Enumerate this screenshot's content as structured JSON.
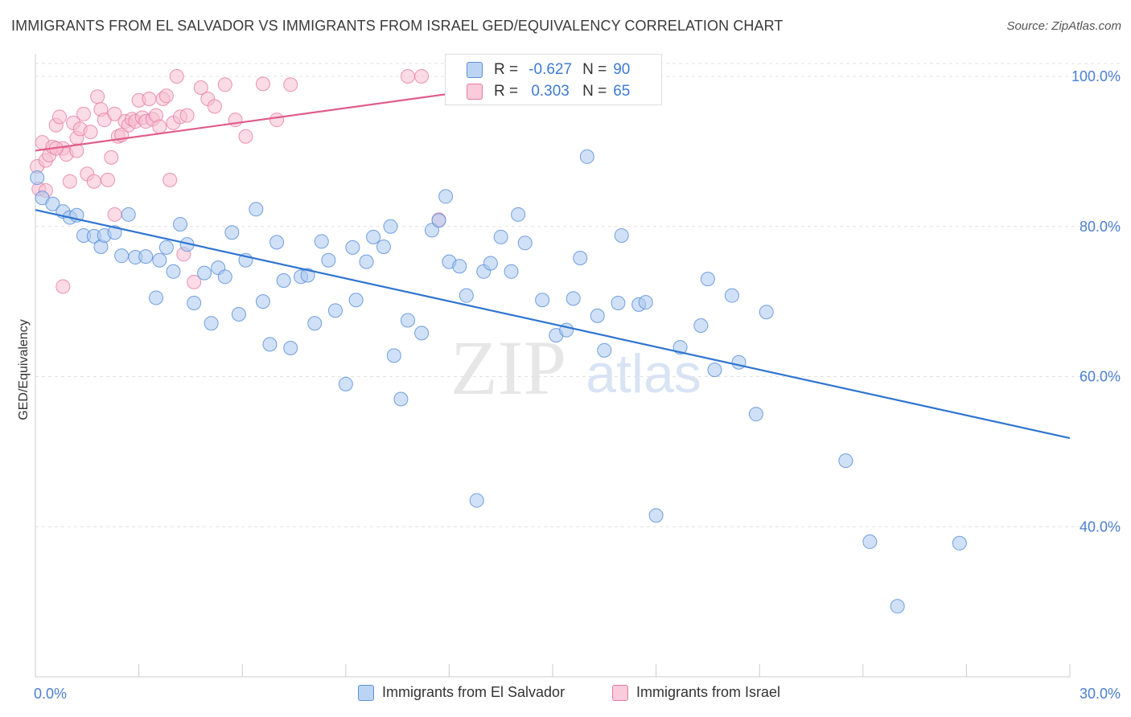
{
  "title": "IMMIGRANTS FROM EL SALVADOR VS IMMIGRANTS FROM ISRAEL GED/EQUIVALENCY CORRELATION CHART",
  "source": "Source: ZipAtlas.com",
  "watermark": {
    "zip": "ZIP",
    "atlas": "atlas"
  },
  "stats_box": {
    "r_label": "R =",
    "n_label": "N =",
    "rows": [
      {
        "r": "-0.627",
        "n": "90"
      },
      {
        "r": "0.303",
        "n": "65"
      }
    ]
  },
  "colors": {
    "blue_fill": "#aac8f0",
    "blue_stroke": "#5b8fd8",
    "blue_line": "#2f74d0",
    "pink_fill": "#f7bdd0",
    "pink_stroke": "#e67aa0",
    "pink_line": "#e05c8a",
    "tick_text": "#4a7fd0",
    "grid": "#e0e0e0"
  },
  "chart_data": {
    "type": "scatter",
    "title": "IMMIGRANTS FROM EL SALVADOR VS IMMIGRANTS FROM ISRAEL GED/EQUIVALENCY CORRELATION CHART",
    "xlabel": "",
    "ylabel": "GED/Equivalency",
    "xlim": [
      0,
      30
    ],
    "ylim": [
      20,
      103
    ],
    "x_tick_labels": [
      {
        "value": 0,
        "label": "0.0%"
      },
      {
        "value": 30,
        "label": "30.0%"
      }
    ],
    "y_tick_labels": [
      {
        "value": 100,
        "label": "100.0%"
      },
      {
        "value": 80,
        "label": "80.0%"
      },
      {
        "value": 60,
        "label": "60.0%"
      },
      {
        "value": 40,
        "label": "40.0%"
      }
    ],
    "grid": true,
    "legend_position": "bottom-center",
    "series": [
      {
        "name": "Immigrants from El Salvador",
        "color": "blue",
        "trend": {
          "x": [
            0,
            30
          ],
          "y": [
            82.2,
            51.8
          ]
        },
        "points": [
          [
            0.05,
            86.5
          ],
          [
            0.2,
            83.8
          ],
          [
            0.5,
            83.0
          ],
          [
            0.8,
            82.0
          ],
          [
            1.0,
            81.2
          ],
          [
            1.2,
            81.5
          ],
          [
            1.4,
            78.8
          ],
          [
            1.7,
            78.7
          ],
          [
            1.9,
            77.3
          ],
          [
            2.0,
            78.8
          ],
          [
            2.3,
            79.2
          ],
          [
            2.5,
            76.1
          ],
          [
            2.7,
            81.6
          ],
          [
            2.9,
            75.9
          ],
          [
            3.2,
            76.0
          ],
          [
            3.5,
            70.5
          ],
          [
            3.6,
            75.5
          ],
          [
            3.8,
            77.2
          ],
          [
            4.0,
            74.0
          ],
          [
            4.2,
            80.3
          ],
          [
            4.4,
            77.6
          ],
          [
            4.6,
            69.8
          ],
          [
            4.9,
            73.8
          ],
          [
            5.1,
            67.1
          ],
          [
            5.3,
            74.5
          ],
          [
            5.5,
            73.3
          ],
          [
            5.7,
            79.2
          ],
          [
            5.9,
            68.3
          ],
          [
            6.1,
            75.5
          ],
          [
            6.4,
            82.3
          ],
          [
            6.6,
            70.0
          ],
          [
            6.8,
            64.3
          ],
          [
            7.0,
            77.9
          ],
          [
            7.2,
            72.8
          ],
          [
            7.4,
            63.8
          ],
          [
            7.7,
            73.3
          ],
          [
            7.9,
            73.5
          ],
          [
            8.1,
            67.1
          ],
          [
            8.3,
            78.0
          ],
          [
            8.5,
            75.5
          ],
          [
            8.7,
            68.8
          ],
          [
            9.0,
            59.0
          ],
          [
            9.2,
            77.2
          ],
          [
            9.3,
            70.2
          ],
          [
            9.6,
            75.3
          ],
          [
            9.8,
            78.6
          ],
          [
            10.1,
            77.3
          ],
          [
            10.3,
            80.0
          ],
          [
            10.4,
            62.8
          ],
          [
            10.6,
            57.0
          ],
          [
            10.8,
            67.5
          ],
          [
            11.2,
            65.8
          ],
          [
            11.5,
            79.5
          ],
          [
            11.7,
            80.8
          ],
          [
            11.9,
            84.0
          ],
          [
            12.0,
            75.3
          ],
          [
            12.3,
            74.7
          ],
          [
            12.5,
            70.8
          ],
          [
            12.8,
            43.5
          ],
          [
            13.0,
            74.0
          ],
          [
            13.2,
            75.1
          ],
          [
            13.5,
            78.6
          ],
          [
            13.8,
            74.0
          ],
          [
            14.0,
            81.6
          ],
          [
            14.2,
            77.8
          ],
          [
            14.7,
            70.2
          ],
          [
            15.1,
            65.5
          ],
          [
            15.4,
            66.2
          ],
          [
            15.6,
            70.4
          ],
          [
            15.8,
            75.8
          ],
          [
            16.0,
            89.3
          ],
          [
            16.3,
            68.1
          ],
          [
            16.5,
            63.5
          ],
          [
            16.9,
            69.8
          ],
          [
            17.0,
            78.8
          ],
          [
            17.5,
            69.6
          ],
          [
            17.7,
            69.9
          ],
          [
            18.0,
            41.5
          ],
          [
            18.7,
            63.9
          ],
          [
            19.3,
            66.8
          ],
          [
            19.5,
            73.0
          ],
          [
            19.7,
            60.9
          ],
          [
            20.2,
            70.8
          ],
          [
            20.4,
            61.9
          ],
          [
            20.9,
            55.0
          ],
          [
            21.2,
            68.6
          ],
          [
            23.5,
            48.8
          ],
          [
            24.2,
            38.0
          ],
          [
            25.0,
            29.4
          ],
          [
            26.8,
            37.8
          ]
        ]
      },
      {
        "name": "Immigrants from Israel",
        "color": "pink",
        "trend": {
          "x": [
            0,
            16
          ],
          "y": [
            90.1,
            100.2
          ]
        },
        "points": [
          [
            0.05,
            88.0
          ],
          [
            0.1,
            85.0
          ],
          [
            0.2,
            91.2
          ],
          [
            0.3,
            88.8
          ],
          [
            0.4,
            89.5
          ],
          [
            0.5,
            90.6
          ],
          [
            0.6,
            93.5
          ],
          [
            0.7,
            94.6
          ],
          [
            0.8,
            90.4
          ],
          [
            0.9,
            89.6
          ],
          [
            1.0,
            86.0
          ],
          [
            1.1,
            93.8
          ],
          [
            1.2,
            91.8
          ],
          [
            1.3,
            93.0
          ],
          [
            1.4,
            95.0
          ],
          [
            1.5,
            87.0
          ],
          [
            1.6,
            92.6
          ],
          [
            1.7,
            86.0
          ],
          [
            1.8,
            97.3
          ],
          [
            1.9,
            95.6
          ],
          [
            2.0,
            94.2
          ],
          [
            2.1,
            86.2
          ],
          [
            2.2,
            89.2
          ],
          [
            2.3,
            95.0
          ],
          [
            2.4,
            92.0
          ],
          [
            2.5,
            92.2
          ],
          [
            2.6,
            94.0
          ],
          [
            2.7,
            93.5
          ],
          [
            2.8,
            94.3
          ],
          [
            2.9,
            94.0
          ],
          [
            3.0,
            96.8
          ],
          [
            3.1,
            94.5
          ],
          [
            3.2,
            94.0
          ],
          [
            3.3,
            97.0
          ],
          [
            3.4,
            94.3
          ],
          [
            3.5,
            94.8
          ],
          [
            3.6,
            93.3
          ],
          [
            3.7,
            97.0
          ],
          [
            3.8,
            97.4
          ],
          [
            3.9,
            86.2
          ],
          [
            4.0,
            93.8
          ],
          [
            4.1,
            100.0
          ],
          [
            4.2,
            94.6
          ],
          [
            4.3,
            76.3
          ],
          [
            4.4,
            94.8
          ],
          [
            4.6,
            72.6
          ],
          [
            4.8,
            98.5
          ],
          [
            5.0,
            97.0
          ],
          [
            5.2,
            96.0
          ],
          [
            5.5,
            98.9
          ],
          [
            5.8,
            94.2
          ],
          [
            6.1,
            92.0
          ],
          [
            6.6,
            99.0
          ],
          [
            0.8,
            72.0
          ],
          [
            1.2,
            90.1
          ],
          [
            2.3,
            81.6
          ],
          [
            7.0,
            94.2
          ],
          [
            7.4,
            98.9
          ],
          [
            10.8,
            100.0
          ],
          [
            11.2,
            100.0
          ],
          [
            11.7,
            80.9
          ],
          [
            15.0,
            99.8
          ],
          [
            15.6,
            100.0
          ],
          [
            0.3,
            84.8
          ],
          [
            0.6,
            90.4
          ]
        ]
      }
    ]
  },
  "legend": {
    "items": [
      {
        "label": "Immigrants from El Salvador"
      },
      {
        "label": "Immigrants from Israel"
      }
    ]
  }
}
